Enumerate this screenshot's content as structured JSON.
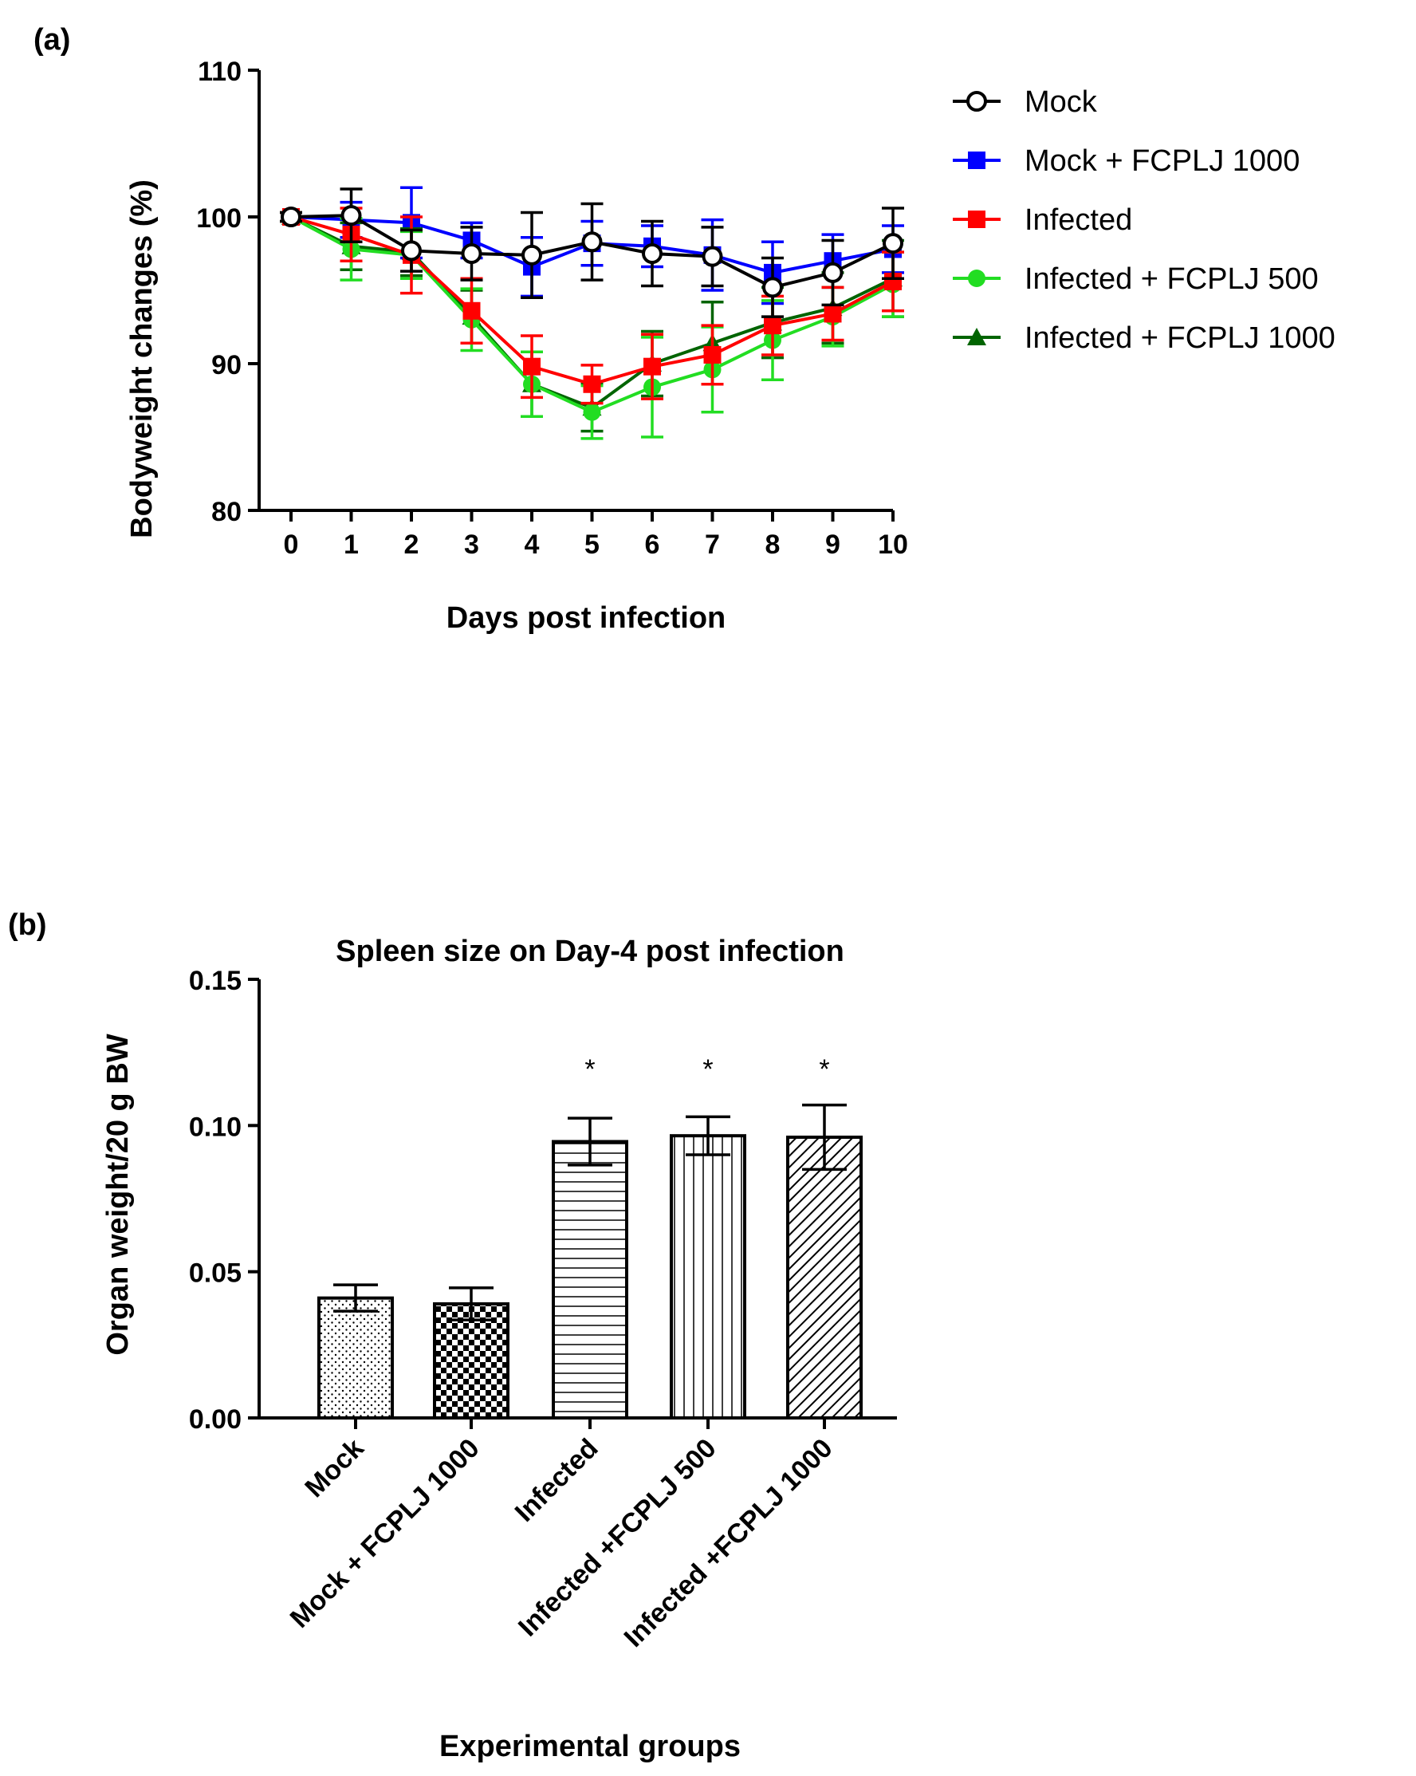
{
  "panels": {
    "a_label": "(a)",
    "b_label": "(b)"
  },
  "chart_data": [
    {
      "type": "line",
      "panel": "(a)",
      "title": "",
      "xlabel": "Days post infection",
      "ylabel": "Bodyweight changes (%)",
      "xlim": [
        0,
        10
      ],
      "ylim": [
        80,
        110
      ],
      "x_ticks": [
        "0",
        "1",
        "2",
        "3",
        "4",
        "5",
        "6",
        "7",
        "8",
        "9",
        "10"
      ],
      "y_ticks": [
        "80",
        "90",
        "100",
        "110"
      ],
      "x": [
        0,
        1,
        2,
        3,
        4,
        5,
        6,
        7,
        8,
        9,
        10
      ],
      "legend_position": "right",
      "series": [
        {
          "name": "Mock + FCPLJ 1000",
          "color": "#0000ff",
          "marker": "square",
          "values": [
            100,
            99.8,
            99.6,
            98.4,
            96.6,
            98.2,
            98.0,
            97.4,
            96.2,
            97.0,
            97.8
          ],
          "errors": [
            0.3,
            1.2,
            2.4,
            1.2,
            2.0,
            1.5,
            1.4,
            2.4,
            2.1,
            1.8,
            1.6
          ]
        },
        {
          "name": "Infected + FCPLJ 1000",
          "color": "#006400",
          "marker": "triangle",
          "values": [
            100,
            98.0,
            97.6,
            93.2,
            88.6,
            87.0,
            90.0,
            91.4,
            92.8,
            93.8,
            95.8
          ],
          "errors": [
            0.3,
            1.6,
            1.6,
            1.8,
            2.2,
            1.6,
            2.2,
            2.8,
            2.4,
            2.4,
            2.6
          ]
        },
        {
          "name": "Infected + FCPLJ 500",
          "color": "#22dd22",
          "marker": "circle",
          "values": [
            100,
            97.8,
            97.4,
            93.0,
            88.6,
            86.7,
            88.4,
            89.6,
            91.6,
            93.2,
            95.4
          ],
          "errors": [
            0.3,
            2.1,
            1.6,
            2.1,
            2.2,
            1.8,
            3.4,
            2.9,
            2.7,
            2.0,
            2.2
          ]
        },
        {
          "name": "Infected",
          "color": "#ff0000",
          "marker": "square",
          "values": [
            100,
            98.8,
            97.4,
            93.6,
            89.8,
            88.6,
            89.8,
            90.6,
            92.6,
            93.4,
            95.6
          ],
          "errors": [
            0.3,
            1.8,
            2.6,
            2.2,
            2.1,
            1.3,
            2.2,
            2.0,
            2.0,
            1.8,
            2.0
          ]
        },
        {
          "name": "Mock",
          "color": "#000000",
          "marker": "open-circle",
          "values": [
            100,
            100.1,
            97.7,
            97.5,
            97.4,
            98.3,
            97.5,
            97.3,
            95.2,
            96.2,
            98.2
          ],
          "errors": [
            0.3,
            1.8,
            1.4,
            1.8,
            2.9,
            2.6,
            2.2,
            2.0,
            2.0,
            2.2,
            2.4
          ]
        }
      ],
      "legend": [
        "Mock",
        "Mock + FCPLJ 1000",
        "Infected",
        "Infected + FCPLJ 500",
        "Infected + FCPLJ 1000"
      ]
    },
    {
      "type": "bar",
      "panel": "(b)",
      "title": "Spleen size on Day-4 post infection",
      "xlabel": "Experimental groups",
      "ylabel": "Organ weight/20 g BW",
      "ylim": [
        0,
        0.15
      ],
      "y_ticks": [
        "0.00",
        "0.05",
        "0.10",
        "0.15"
      ],
      "categories": [
        "Mock",
        "Mock + FCPLJ 1000",
        "Infected",
        "Infected +FCPLJ 500",
        "Infected +FCPLJ 1000"
      ],
      "values": [
        0.041,
        0.039,
        0.0945,
        0.0965,
        0.096
      ],
      "errors": [
        0.0045,
        0.0055,
        0.008,
        0.0065,
        0.011
      ],
      "patterns": [
        "dots",
        "checker",
        "horizontal",
        "vertical",
        "diagonal"
      ],
      "annotations": [
        "",
        "",
        "*",
        "*",
        "*"
      ]
    }
  ]
}
